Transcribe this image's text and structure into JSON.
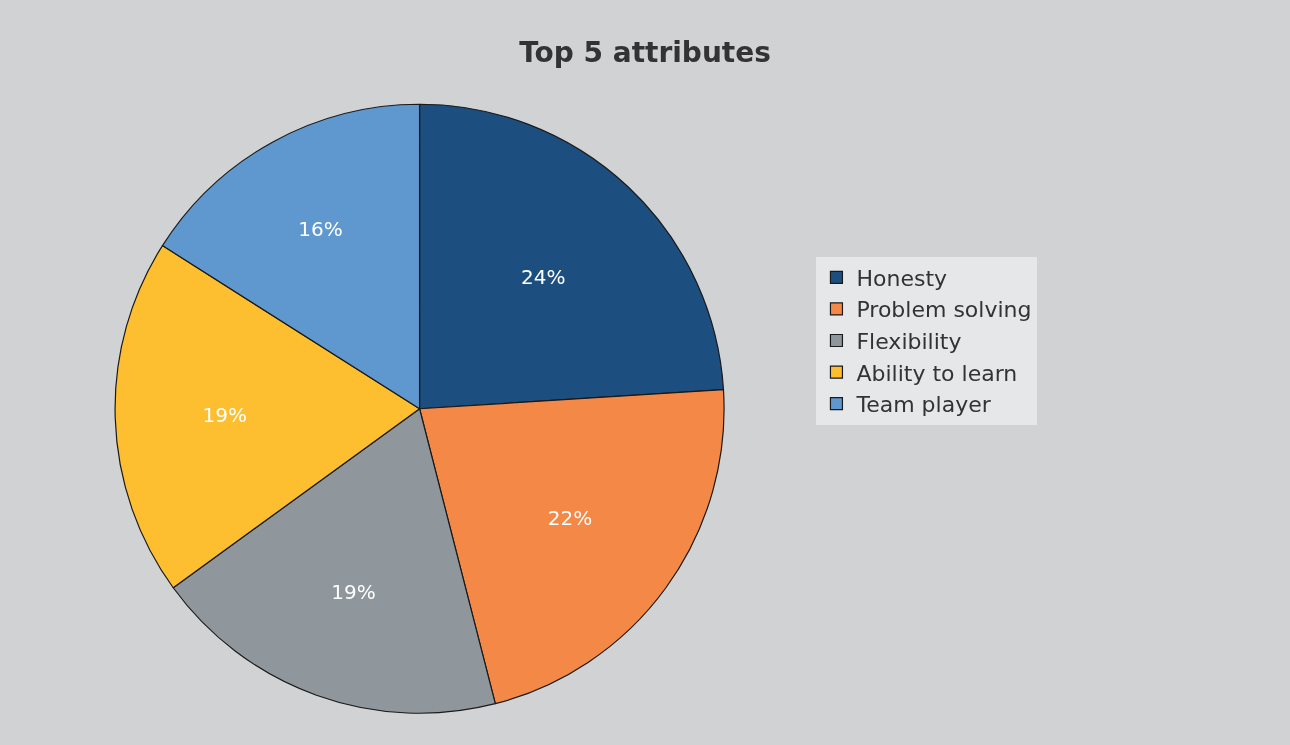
{
  "chart_data": {
    "type": "pie",
    "title": "Top 5 attributes",
    "categories": [
      "Honesty",
      "Problem solving",
      "Flexibility",
      "Ability to learn",
      "Team player"
    ],
    "values": [
      24,
      22,
      19,
      19,
      16
    ],
    "colors": [
      "#1c4f80",
      "#f48846",
      "#8f979c",
      "#fdbe30",
      "#5e98cf"
    ],
    "value_labels": [
      "24%",
      "22%",
      "19%",
      "19%",
      "16%"
    ],
    "legend": "right"
  }
}
